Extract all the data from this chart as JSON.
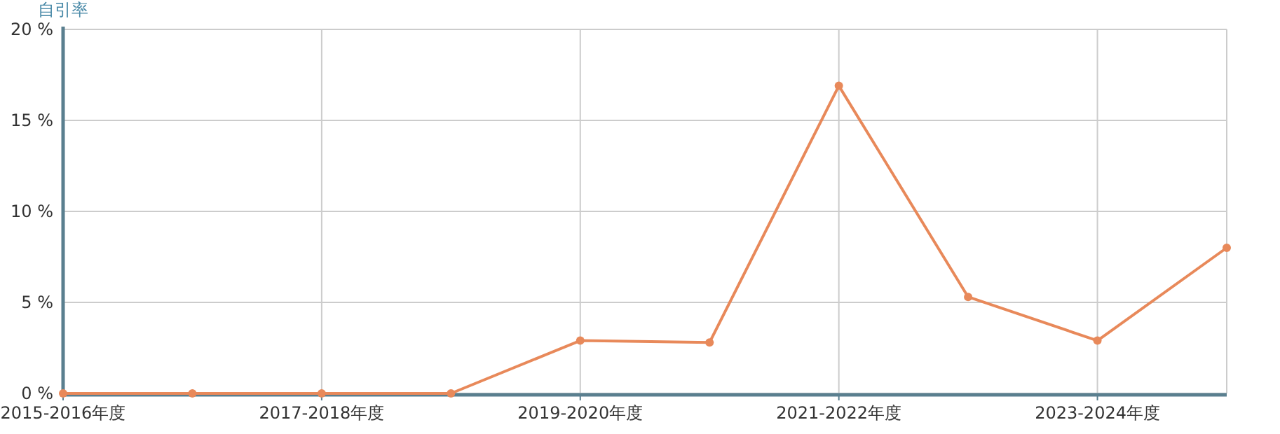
{
  "chart_data": {
    "type": "line",
    "ylabel": "自引率",
    "categories": [
      "2015-2016年度",
      null,
      "2017-2018年度",
      null,
      "2019-2020年度",
      null,
      "2021-2022年度",
      null,
      "2023-2024年度",
      null
    ],
    "series": [
      {
        "color": "#e8895a",
        "values": [
          0,
          0,
          0,
          0,
          2.9,
          2.8,
          16.9,
          5.3,
          2.9,
          8.0
        ]
      }
    ],
    "ylim": [
      0,
      20
    ],
    "yticks": [
      {
        "value": 0,
        "label": "0 %"
      },
      {
        "value": 5,
        "label": "5 %"
      },
      {
        "value": 10,
        "label": "10 %"
      },
      {
        "value": 15,
        "label": "15 %"
      },
      {
        "value": 20,
        "label": "20 %"
      }
    ],
    "grid": true,
    "marker": "circle",
    "line_style": "solid"
  }
}
